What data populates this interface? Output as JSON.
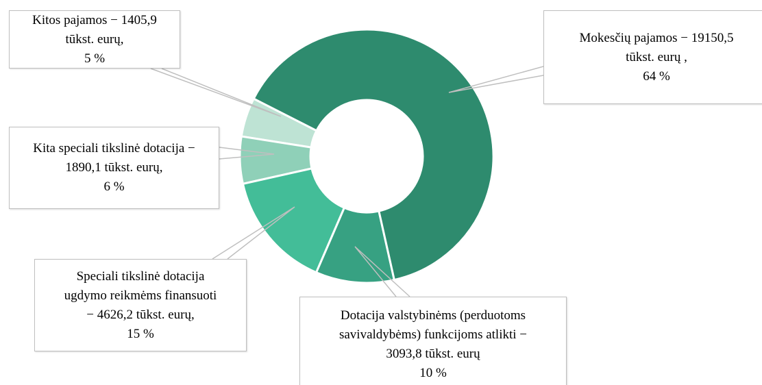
{
  "chart_data": {
    "type": "donut",
    "categories": [
      "Mokesčių pajamos − 19150,5 tūkst. eurų ,",
      "Dotacija valstybinėms (perduotoms savivaldybėms) funkcijoms atlikti − 3093,8 tūkst. eurų",
      "Speciali tikslinė dotacija ugdymo reikmėms finansuoti − 4626,2 tūkst. eurų,",
      "Kita speciali tikslinė dotacija − 1890,1 tūkst. eurų,",
      "Kitos pajamos − 1405,9 tūkst. eurų,"
    ],
    "values": [
      64,
      10,
      15,
      6,
      5
    ],
    "value_labels": [
      "64  %",
      "10  %",
      "15  %",
      "6 %",
      "5 %"
    ],
    "colors": [
      "#2e8b6e",
      "#37a182",
      "#43bd98",
      "#8fd0b8",
      "#bee3d4"
    ]
  }
}
